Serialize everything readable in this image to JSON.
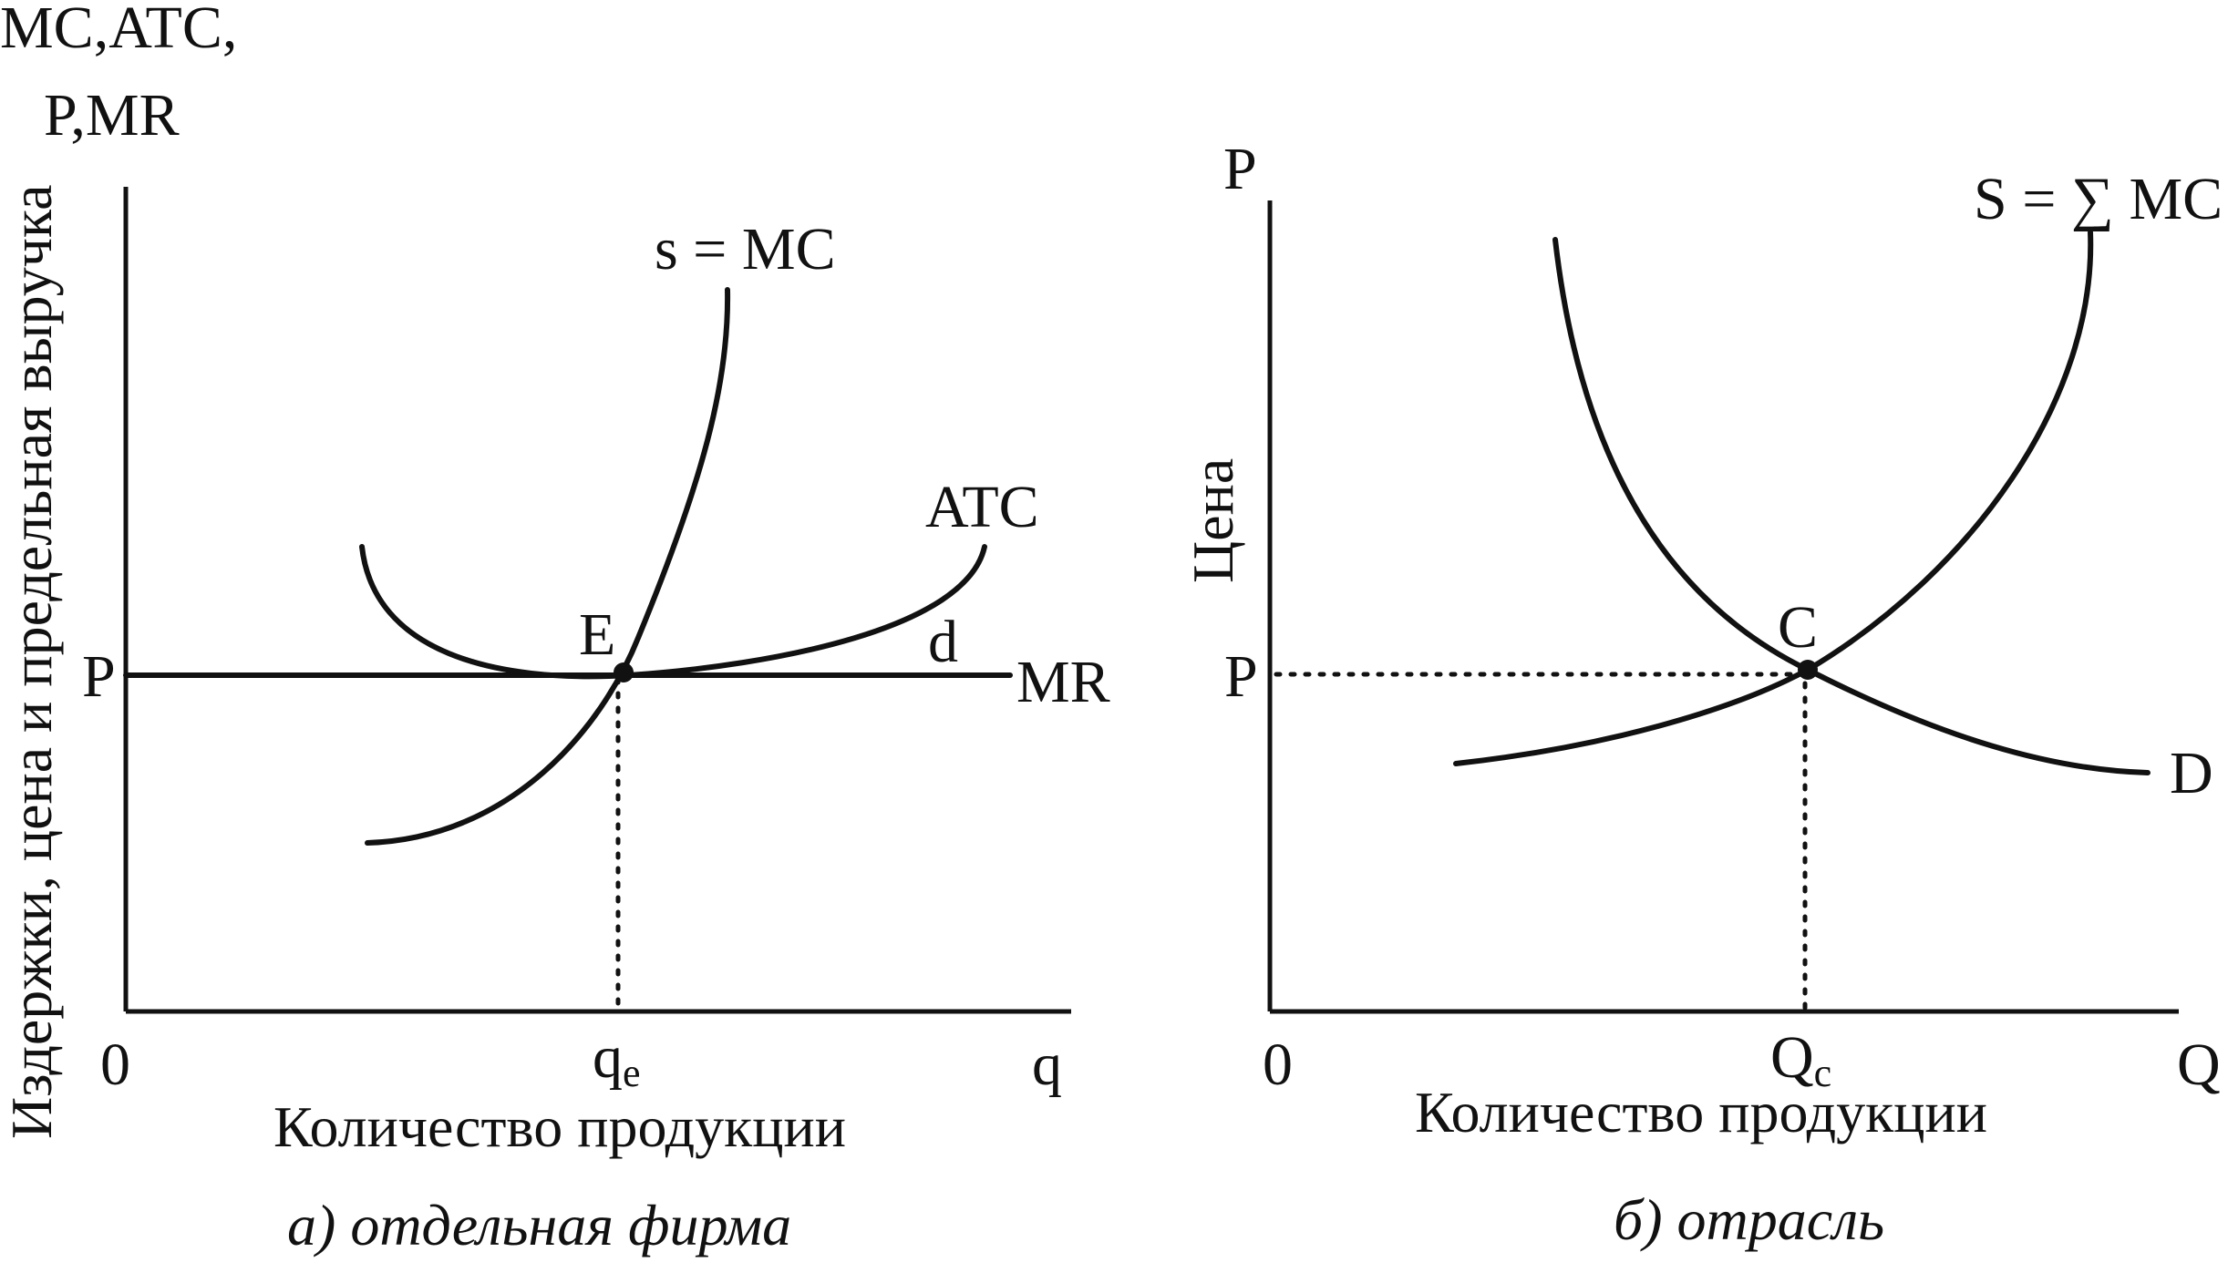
{
  "left_panel": {
    "y_label_top_line1": "MC,ATC,",
    "y_label_top_line2": "P,MR",
    "y_axis_title": "Издержки, цена и предельная выручка",
    "origin": "0",
    "x_end": "q",
    "x_axis_title": "Количество продукции",
    "price_level": "P",
    "eq_quantity_base": "q",
    "eq_quantity_sub": "e",
    "point_label": "E",
    "mc_label": "s = MC",
    "atc_label": "ATC",
    "d_label": "d",
    "mr_label": "MR",
    "caption": "а) отдельная фирма"
  },
  "right_panel": {
    "y_end": "P",
    "y_axis_title": "Цена",
    "origin": "0",
    "x_end": "Q",
    "x_axis_title": "Количество продукции",
    "price_level": "P",
    "eq_quantity_base": "Q",
    "eq_quantity_sub": "c",
    "point_label": "C",
    "supply_label": "S = ∑ MC",
    "demand_label": "D",
    "caption": "б) отрасль"
  }
}
